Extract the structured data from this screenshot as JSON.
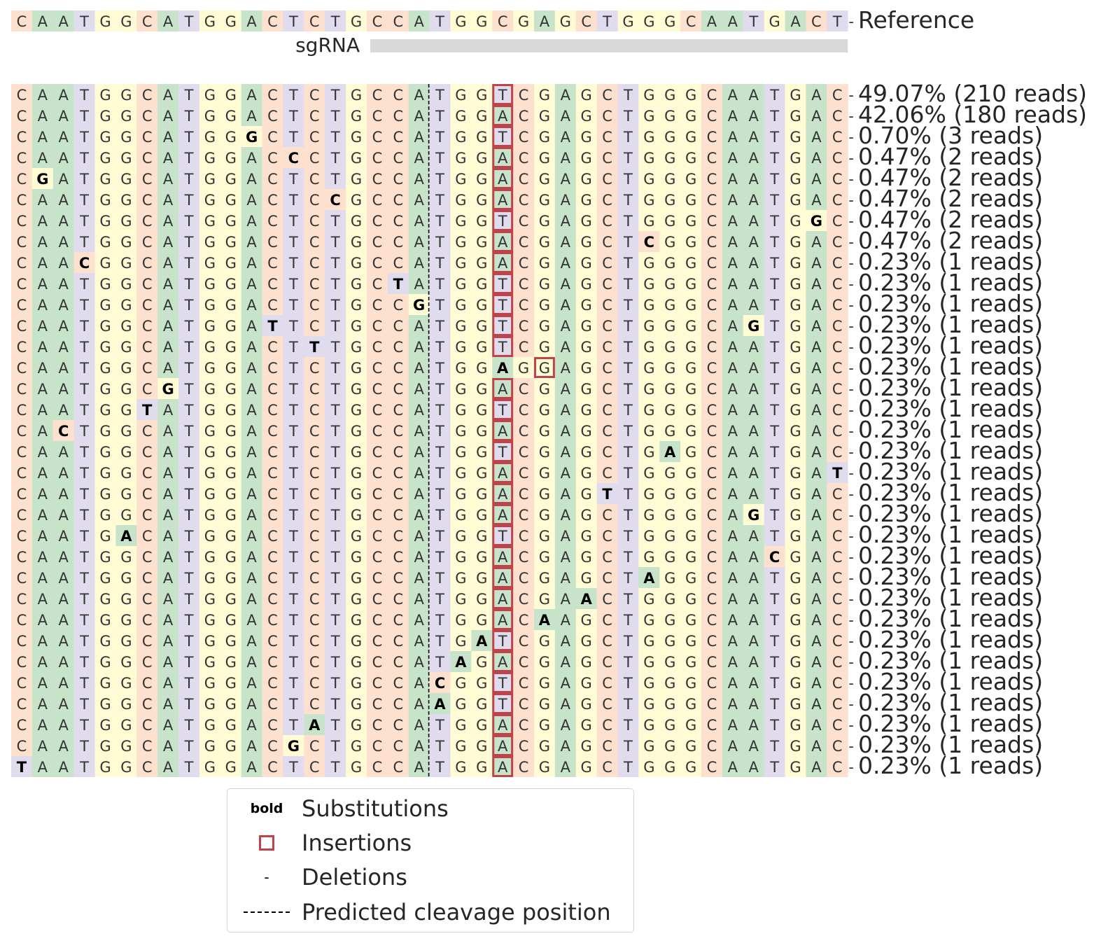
{
  "chart_data": {
    "type": "alleles_table",
    "reference": {
      "sequence": "CAATGGCATGGACTCTGCCATGGCGAGCTGGGCAATGACT",
      "label": "Reference"
    },
    "sgrna": {
      "label": "sgRNA",
      "start_index": 17,
      "end_index": 40
    },
    "cleavage_after_index": 20,
    "base_colors": {
      "A": "#c7e4cb",
      "C": "#fde0ce",
      "G": "#fffcd5",
      "T": "#e1dbee"
    },
    "insertion_color": "#c0434b",
    "rows": [
      {
        "seq": "CAATGGCATGGACTCTGCCATGGTCGAGCTGGGCAATGAC-",
        "subs": [],
        "ins": [
          23
        ],
        "label": "49.07% (210 reads)"
      },
      {
        "seq": "CAATGGCATGGACTCTGCCATGGACGAGCTGGGCAATGAC-",
        "subs": [],
        "ins": [
          23
        ],
        "label": "42.06% (180 reads)"
      },
      {
        "seq": "CAATGGCATGGGCTCTGCCATGGTCGAGCTGGGCAATGAC-",
        "subs": [
          11
        ],
        "ins": [
          23
        ],
        "label": "0.70% (3 reads)"
      },
      {
        "seq": "CAATGGCATGGACCCTGCCATGGACGAGCTGGGCAATGAC-",
        "subs": [
          13
        ],
        "ins": [
          23
        ],
        "label": "0.47% (2 reads)"
      },
      {
        "seq": "CGATGGCATGGACTCTGCCATGGACGAGCTGGGCAATGAC-",
        "subs": [
          1
        ],
        "ins": [
          23
        ],
        "label": "0.47% (2 reads)"
      },
      {
        "seq": "CAATGGCATGGACTCCGCCATGGACGAGCTGGGCAATGAC-",
        "subs": [
          15
        ],
        "ins": [
          23
        ],
        "label": "0.47% (2 reads)"
      },
      {
        "seq": "CAATGGCATGGACTCTGCCATGGTCGAGCTGGGCAATGGC-",
        "subs": [
          38
        ],
        "ins": [
          23
        ],
        "label": "0.47% (2 reads)"
      },
      {
        "seq": "CAATGGCATGGACTCTGCCATGGACGAGCTCGGCAATGAC-",
        "subs": [
          30
        ],
        "ins": [
          23
        ],
        "label": "0.47% (2 reads)"
      },
      {
        "seq": "CAACGGCATGGACTCTGCCATGGACGAGCTGGGCAATGAC-",
        "subs": [
          3
        ],
        "ins": [
          23
        ],
        "label": "0.23% (1 reads)"
      },
      {
        "seq": "CAATGGCATGGACTCTGCTATGGTCGAGCTGGGCAATGAC-",
        "subs": [
          18
        ],
        "ins": [
          23
        ],
        "label": "0.23% (1 reads)"
      },
      {
        "seq": "CAATGGCATGGACTCTGCCGTGGTCGAGCTGGGCAATGAC-",
        "subs": [
          19
        ],
        "ins": [
          23
        ],
        "label": "0.23% (1 reads)"
      },
      {
        "seq": "CAATGGCATGGATTCTGCCATGGTCGAGCTGGGCAGTGAC-",
        "subs": [
          12,
          35
        ],
        "ins": [
          23
        ],
        "label": "0.23% (1 reads)"
      },
      {
        "seq": "CAATGGCATGGACTTTGCCATGGTCGAGCTGGGCAATGAC-",
        "subs": [
          14
        ],
        "ins": [
          23
        ],
        "label": "0.23% (1 reads)"
      },
      {
        "seq": "CAATGGCATGGACTCTGCCATGGAGGAGCTGGGCAATGAC-",
        "subs": [
          23
        ],
        "ins": [
          25
        ],
        "label": "0.23% (1 reads)"
      },
      {
        "seq": "CAATGGCGTGGACTCTGCCATGGACGAGCTGGGCAATGAC-",
        "subs": [
          7
        ],
        "ins": [
          23
        ],
        "label": "0.23% (1 reads)"
      },
      {
        "seq": "CAATGGTATGGACTCTGCCATGGTCGAGCTGGGCAATGAC-",
        "subs": [
          6
        ],
        "ins": [
          23
        ],
        "label": "0.23% (1 reads)"
      },
      {
        "seq": "CACTGGCATGGACTCTGCCATGGACGAGCTGGGCAATGAC-",
        "subs": [
          2
        ],
        "ins": [
          23
        ],
        "label": "0.23% (1 reads)"
      },
      {
        "seq": "CAATGGCATGGACTCTGCCATGGTCGAGCTGAGCAATGAC-",
        "subs": [
          31
        ],
        "ins": [
          23
        ],
        "label": "0.23% (1 reads)"
      },
      {
        "seq": "CAATGGCATGGACTCTGCCATGGACGAGCTGGGCAATGAT-",
        "subs": [
          39
        ],
        "ins": [
          23
        ],
        "label": "0.23% (1 reads)"
      },
      {
        "seq": "CAATGGCATGGACTCTGCCATGGACGAGTTGGGCAATGAC-",
        "subs": [
          28
        ],
        "ins": [
          23
        ],
        "label": "0.23% (1 reads)"
      },
      {
        "seq": "CAATGGCATGGACTCTGCCATGGACGAGCTGGGCAGTGAC-",
        "subs": [
          35
        ],
        "ins": [
          23
        ],
        "label": "0.23% (1 reads)"
      },
      {
        "seq": "CAATGACATGGACTCTGCCATGGTCGAGCTGGGCAATGAC-",
        "subs": [
          5
        ],
        "ins": [
          23
        ],
        "label": "0.23% (1 reads)"
      },
      {
        "seq": "CAATGGCATGGACTCTGCCATGGACGAGCTGGGCAACGAC-",
        "subs": [
          36
        ],
        "ins": [
          23
        ],
        "label": "0.23% (1 reads)"
      },
      {
        "seq": "CAATGGCATGGACTCTGCCATGGACGAGCTAGGCAATGAC-",
        "subs": [
          30
        ],
        "ins": [
          23
        ],
        "label": "0.23% (1 reads)"
      },
      {
        "seq": "CAATGGCATGGACTCTGCCATGGACGAACTGGGCAATGAC-",
        "subs": [
          27
        ],
        "ins": [
          23
        ],
        "label": "0.23% (1 reads)"
      },
      {
        "seq": "CAATGGCATGGACTCTGCCATGGACAAGCTGGGCAATGAC-",
        "subs": [
          25
        ],
        "ins": [
          23
        ],
        "label": "0.23% (1 reads)"
      },
      {
        "seq": "CAATGGCATGGACTCTGCCATGATCGAGCTGGGCAATGAC-",
        "subs": [
          22
        ],
        "ins": [
          23
        ],
        "label": "0.23% (1 reads)"
      },
      {
        "seq": "CAATGGCATGGACTCTGCCATAGACGAGCTGGGCAATGAC-",
        "subs": [
          21
        ],
        "ins": [
          23
        ],
        "label": "0.23% (1 reads)"
      },
      {
        "seq": "CAATGGCATGGACTCTGCCACGGTCGAGCTGGGCAATGAC-",
        "subs": [
          20
        ],
        "ins": [
          23
        ],
        "label": "0.23% (1 reads)"
      },
      {
        "seq": "CAATGGCATGGACTCTGCCAAGGTCGAGCTGGGCAATGAC-",
        "subs": [
          20
        ],
        "ins": [
          23
        ],
        "label": "0.23% (1 reads)"
      },
      {
        "seq": "CAATGGCATGGACTATGCCATGGACGAGCTGGGCAATGAC-",
        "subs": [
          14
        ],
        "ins": [
          23
        ],
        "label": "0.23% (1 reads)"
      },
      {
        "seq": "CAATGGCATGGACGCTGCCATGGACGAGCTGGGCAATGAC-",
        "subs": [
          13
        ],
        "ins": [
          23
        ],
        "label": "0.23% (1 reads)"
      },
      {
        "seq": "TAATGGCATGGACTCTGCCATGGACGAGCTGGGCAATGAC-",
        "subs": [
          0
        ],
        "ins": [
          23
        ],
        "label": "0.23% (1 reads)"
      }
    ]
  },
  "legend": {
    "bold_symbol": "bold",
    "deletion_symbol": "-",
    "substitutions": "Substitutions",
    "insertions": "Insertions",
    "deletions": "Deletions",
    "cleavage": "Predicted cleavage position"
  }
}
